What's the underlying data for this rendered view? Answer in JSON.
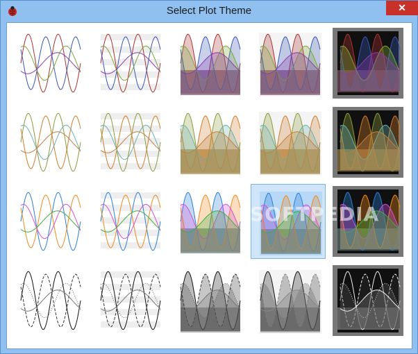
{
  "window": {
    "title": "Select Plot Theme",
    "close_glyph": "✕",
    "app_icon": "ladybug-icon"
  },
  "watermark": "SOFTPEDIA",
  "grid": {
    "columns": 5,
    "rows": 4,
    "selected": {
      "row": 2,
      "col": 3
    }
  },
  "palettes": [
    {
      "name": "red-blue",
      "colors": [
        "#a83232",
        "#3a55b5",
        "#7aa83a",
        "#8a3ab0"
      ],
      "fill_tint": "#8c5a6a"
    },
    {
      "name": "olive-orange",
      "colors": [
        "#8b9a3a",
        "#d07c2a",
        "#6bb0b0",
        "#c08040"
      ],
      "fill_tint": "#b09050"
    },
    {
      "name": "blue-orange",
      "colors": [
        "#2a7fd6",
        "#f08a1a",
        "#d64fd6",
        "#3ab03a"
      ],
      "fill_tint": "#6a8a8a"
    },
    {
      "name": "monochrome",
      "colors": [
        "#111111",
        "#333333",
        "#555555",
        "#777777"
      ],
      "fill_tint": "#9a9a9a"
    }
  ],
  "styles": [
    "lines",
    "lines-bands",
    "filled",
    "filled-light",
    "dark"
  ]
}
